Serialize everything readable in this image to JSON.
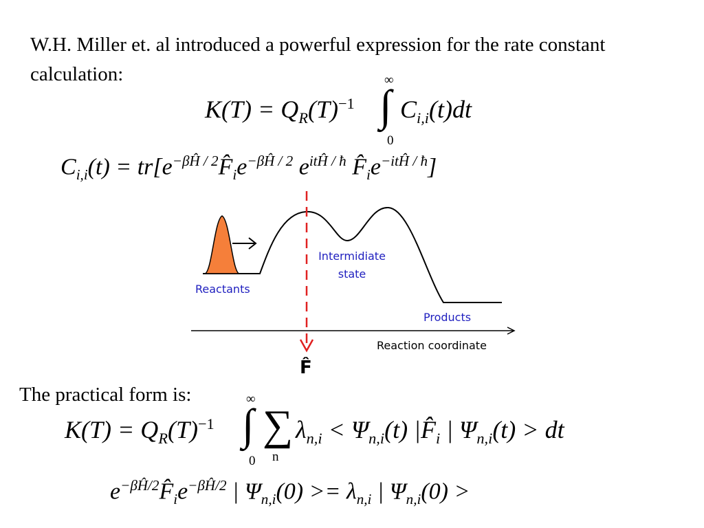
{
  "slide": {
    "intro_text": "W.H. Miller et. al introduced a powerful expression for the rate constant calculation:",
    "practical_text": "The practical form is:"
  },
  "equations": {
    "rate_constant": {
      "lhs": "K(T) = Q",
      "q_subscript": "R",
      "q_paren": "(T)",
      "q_exponent": "−1",
      "upper_limit": "∞",
      "lower_limit": "0",
      "integrand_symbol": "C",
      "integrand_subscript": "i,i",
      "integrand_tail": "(t)dt"
    },
    "correlation": {
      "lhs_symbol": "C",
      "lhs_subscript": "i,i",
      "lhs_tail": "(t) = tr[",
      "e1": "e",
      "e1_exp": "−βĤ / 2",
      "f1": "F̂",
      "f1_sub": "i",
      "e2": "e",
      "e2_exp": "−βĤ / 2",
      "e3": "e",
      "e3_exp": "itĤ / ħ",
      "f2": "F̂",
      "f2_sub": "i",
      "e4": "e",
      "e4_exp": "−itĤ / ħ",
      "close": "]"
    },
    "practical": {
      "lhs": "K(T) = Q",
      "q_subscript": "R",
      "q_paren": "(T)",
      "q_exponent": "−1",
      "upper_limit": "∞",
      "lower_limit": "0",
      "sum_index": "n",
      "lambda": "λ",
      "lambda_sub": "n,i",
      "bra": "< Ψ",
      "bra_sub": "n,i",
      "bra_tail": "(t) |",
      "f_op": "F̂",
      "f_sub": "i",
      "ket": " | Ψ",
      "ket_sub": "n,i",
      "ket_tail": "(t) > dt"
    },
    "eigen": {
      "e1": "e",
      "e1_exp": "−βĤ/2",
      "f_op": "F̂",
      "f_sub": "i",
      "e2": "e",
      "e2_exp": "−βĤ/2",
      "psi1": " | Ψ",
      "psi1_sub": "n,i",
      "mid": "(0) >= λ",
      "lambda_sub": "n,i",
      "psi2": " | Ψ",
      "psi2_sub": "n,i",
      "tail": "(0) >"
    }
  },
  "diagram": {
    "labels": {
      "reactants": "Reactants",
      "intermediate_line1": "Intermidiate",
      "intermediate_line2": "state",
      "products": "Products",
      "axis": "Reaction coordinate",
      "dividing_surface": "F̂"
    },
    "colors": {
      "label_blue": "#1f1fbf",
      "dashed_red": "#e02020",
      "packet_orange": "#f57f3a",
      "curve": "#000000"
    }
  }
}
